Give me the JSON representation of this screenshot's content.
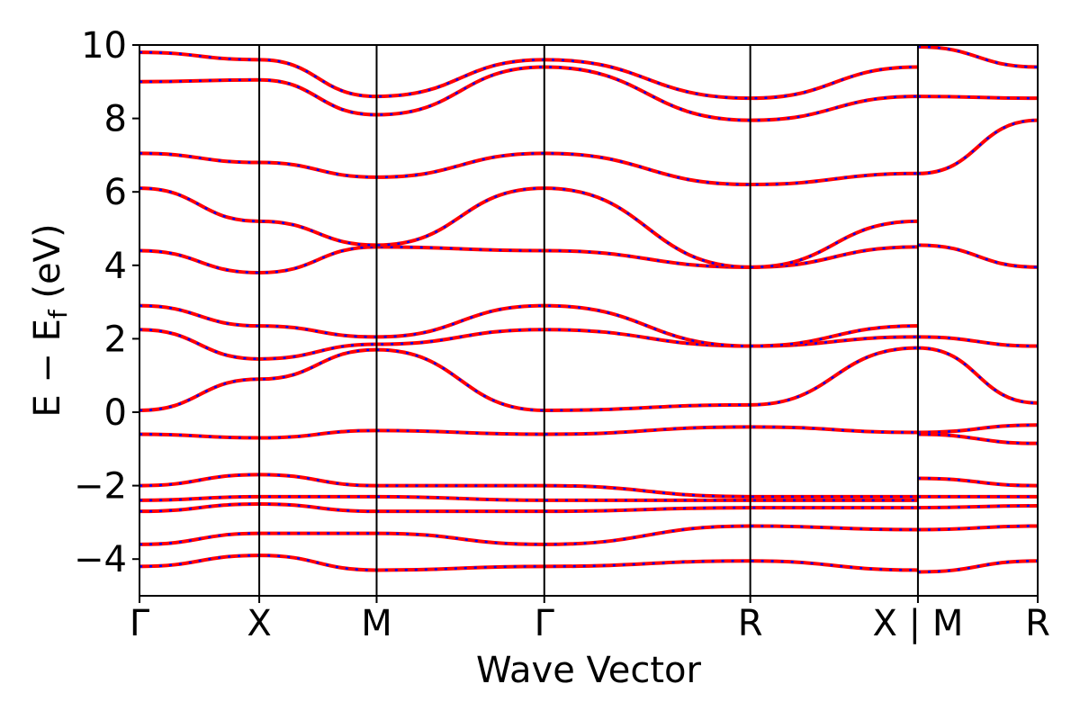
{
  "chart_data": {
    "type": "line",
    "title": "",
    "xlabel": "Wave Vector",
    "ylabel": "E − E_f (eV)",
    "ylabel_parts": {
      "main": "E − E",
      "subscript": "f",
      "unit": "(eV)"
    },
    "ylim": [
      -5,
      10
    ],
    "yticks": [
      -4,
      -2,
      0,
      2,
      4,
      6,
      8,
      10
    ],
    "ytick_labels": [
      "−4",
      "−2",
      "0",
      "2",
      "4",
      "6",
      "8",
      "10"
    ],
    "xlim": [
      0,
      7.5
    ],
    "kpoints": [
      {
        "label": "Γ",
        "x": 0.0
      },
      {
        "label": "X",
        "x": 1.0
      },
      {
        "label": "M",
        "x": 1.98
      },
      {
        "label": "Γ",
        "x": 3.38
      },
      {
        "label": "R",
        "x": 5.1
      },
      {
        "label": "X | M",
        "x": 6.5
      },
      {
        "label": "R",
        "x": 7.5
      }
    ],
    "segment_breaks": [
      6.5
    ],
    "grid": false,
    "colors": {
      "solid": "#ff0000",
      "dotted": "#0000ff"
    },
    "series": [
      {
        "x": [
          0.0,
          1.0,
          1.98,
          3.38,
          5.1,
          6.5
        ],
        "y": [
          -4.2,
          -3.9,
          -4.3,
          -4.2,
          -4.05,
          -4.3
        ]
      },
      {
        "x": [
          0.0,
          1.0,
          1.98,
          3.38,
          5.1,
          6.5
        ],
        "y": [
          -3.6,
          -3.3,
          -3.3,
          -3.6,
          -3.1,
          -3.2
        ]
      },
      {
        "x": [
          0.0,
          1.0,
          1.98,
          3.38,
          5.1,
          6.5
        ],
        "y": [
          -2.7,
          -2.5,
          -2.7,
          -2.7,
          -2.6,
          -2.6
        ]
      },
      {
        "x": [
          0.0,
          1.0,
          1.98,
          3.38,
          5.1,
          6.5
        ],
        "y": [
          -2.4,
          -2.3,
          -2.3,
          -2.4,
          -2.4,
          -2.4
        ]
      },
      {
        "x": [
          0.0,
          1.0,
          1.98,
          3.38,
          5.1,
          6.5
        ],
        "y": [
          -2.0,
          -1.7,
          -2.0,
          -2.0,
          -2.3,
          -2.3
        ]
      },
      {
        "x": [
          0.0,
          1.0,
          1.98,
          3.38,
          5.1,
          6.5
        ],
        "y": [
          -0.6,
          -0.7,
          -0.5,
          -0.6,
          -0.4,
          -0.55
        ]
      },
      {
        "x": [
          0.0,
          1.0,
          1.98,
          3.38,
          5.1,
          6.5
        ],
        "y": [
          0.05,
          0.9,
          1.7,
          0.05,
          0.2,
          1.75
        ]
      },
      {
        "x": [
          0.0,
          1.0,
          1.98,
          3.38,
          5.1,
          6.5
        ],
        "y": [
          2.25,
          1.45,
          1.85,
          2.25,
          1.8,
          2.05
        ]
      },
      {
        "x": [
          0.0,
          1.0,
          1.98,
          3.38,
          5.1,
          6.5
        ],
        "y": [
          2.9,
          2.35,
          2.05,
          2.9,
          1.8,
          2.35
        ]
      },
      {
        "x": [
          0.0,
          1.0,
          1.98,
          3.38,
          5.1,
          6.5
        ],
        "y": [
          4.4,
          3.8,
          4.5,
          4.4,
          3.95,
          4.5
        ]
      },
      {
        "x": [
          0.0,
          1.0,
          1.98,
          3.38,
          5.1,
          6.5
        ],
        "y": [
          6.1,
          5.2,
          4.55,
          6.1,
          3.95,
          5.2
        ]
      },
      {
        "x": [
          0.0,
          1.0,
          1.98,
          3.38,
          5.1,
          6.5
        ],
        "y": [
          7.05,
          6.8,
          6.4,
          7.05,
          6.2,
          6.5
        ]
      },
      {
        "x": [
          0.0,
          1.0,
          1.98,
          3.38,
          5.1,
          6.5
        ],
        "y": [
          9.0,
          9.05,
          8.1,
          9.4,
          7.95,
          8.6
        ]
      },
      {
        "x": [
          0.0,
          1.0,
          1.98,
          3.38,
          5.1,
          6.5
        ],
        "y": [
          9.8,
          9.6,
          8.6,
          9.6,
          8.55,
          9.4
        ]
      },
      {
        "x": [
          6.5,
          7.5
        ],
        "y": [
          -4.35,
          -4.05
        ]
      },
      {
        "x": [
          6.5,
          7.5
        ],
        "y": [
          -3.2,
          -3.1
        ]
      },
      {
        "x": [
          6.5,
          7.5
        ],
        "y": [
          -2.6,
          -2.55
        ]
      },
      {
        "x": [
          6.5,
          7.5
        ],
        "y": [
          -2.3,
          -2.3
        ]
      },
      {
        "x": [
          6.5,
          7.5
        ],
        "y": [
          -1.8,
          -2.0
        ]
      },
      {
        "x": [
          6.5,
          7.5
        ],
        "y": [
          -0.55,
          -0.35
        ]
      },
      {
        "x": [
          6.5,
          7.5
        ],
        "y": [
          -0.6,
          -0.85
        ]
      },
      {
        "x": [
          6.5,
          7.5
        ],
        "y": [
          1.75,
          0.25
        ]
      },
      {
        "x": [
          6.5,
          7.5
        ],
        "y": [
          2.05,
          1.8
        ]
      },
      {
        "x": [
          6.5,
          7.5
        ],
        "y": [
          4.55,
          3.95
        ]
      },
      {
        "x": [
          6.5,
          7.5
        ],
        "y": [
          6.5,
          7.95
        ]
      },
      {
        "x": [
          6.5,
          7.5
        ],
        "y": [
          8.6,
          8.55
        ]
      },
      {
        "x": [
          6.5,
          7.5
        ],
        "y": [
          9.95,
          9.4
        ]
      }
    ]
  }
}
